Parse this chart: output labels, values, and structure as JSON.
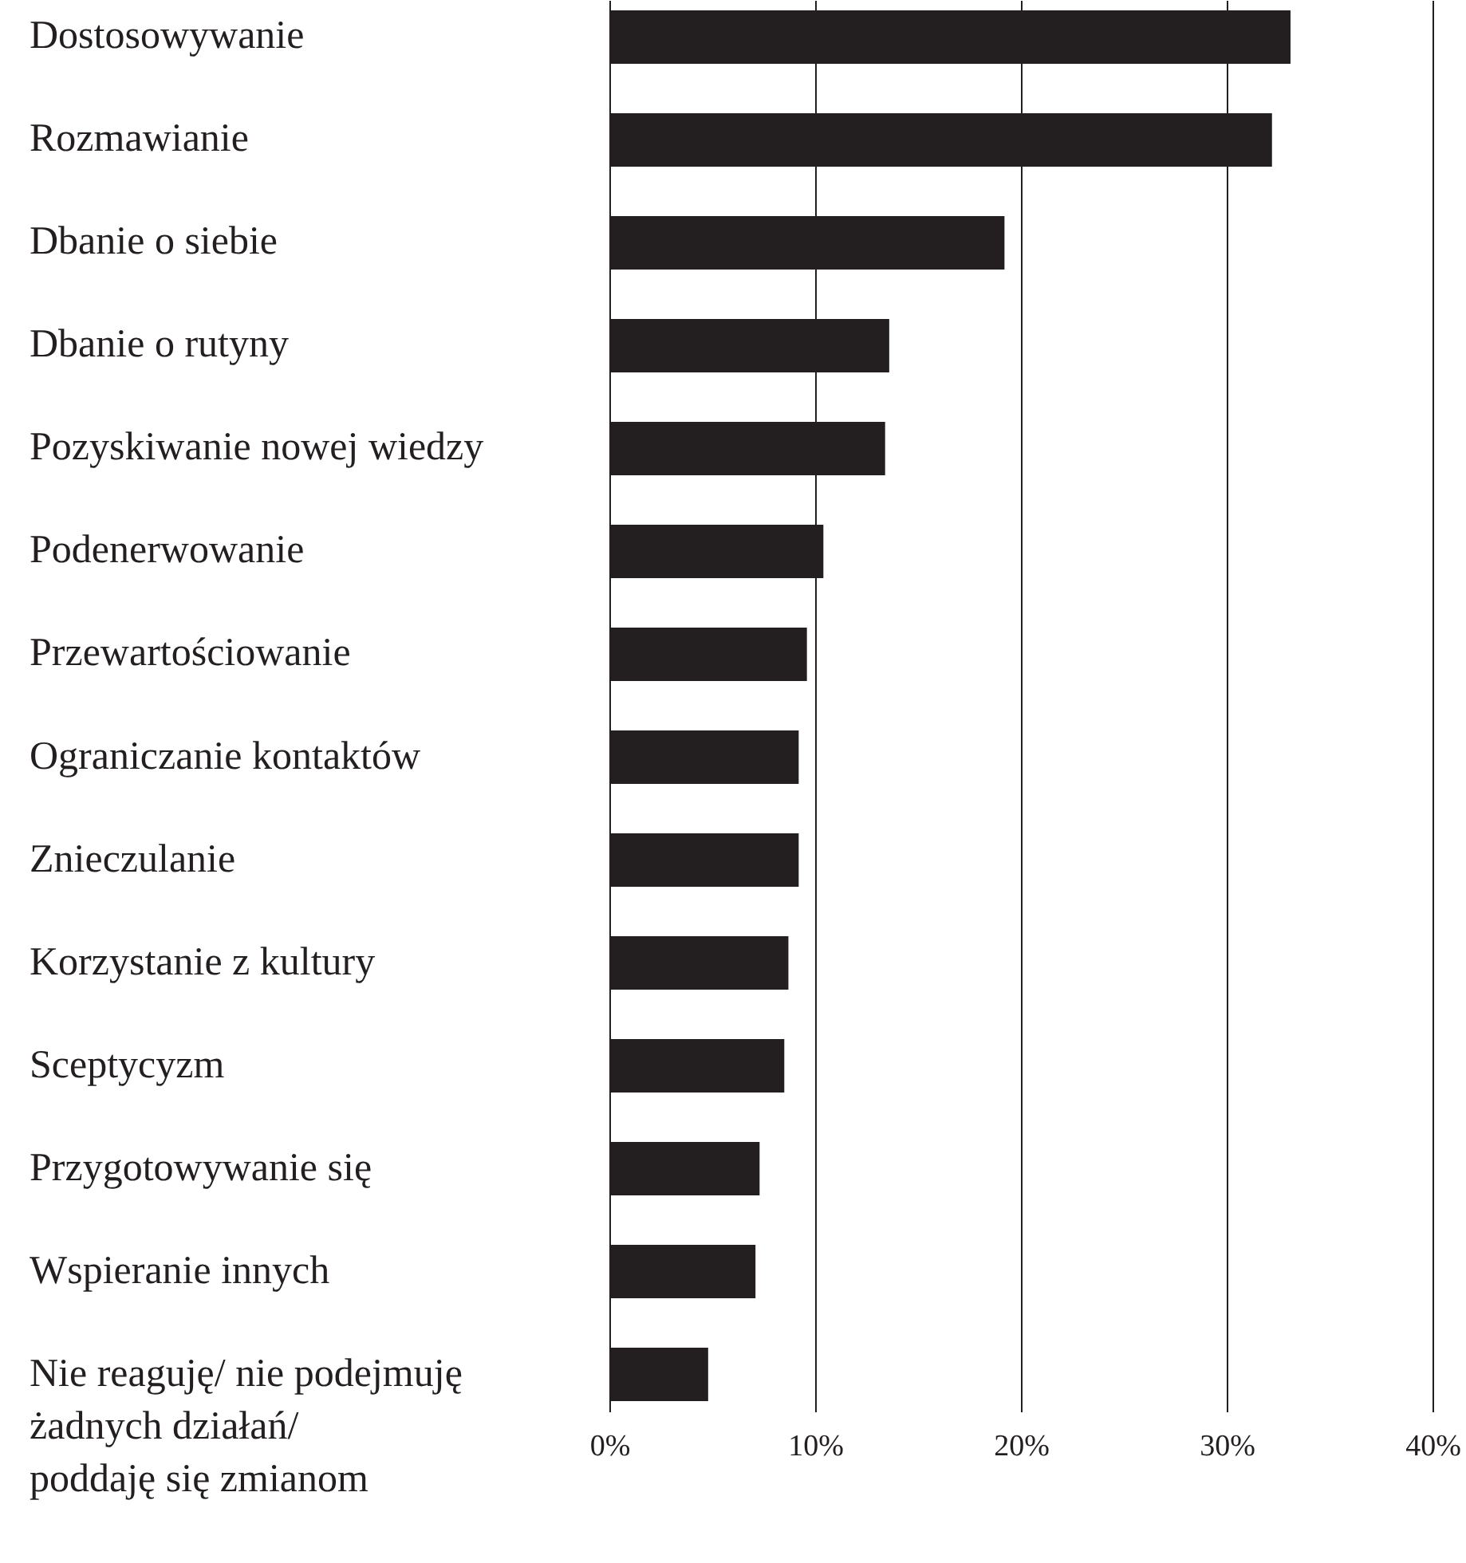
{
  "chart_data": {
    "type": "bar",
    "orientation": "horizontal",
    "categories": [
      "Dostosowywanie",
      "Rozmawianie",
      "Dbanie o siebie",
      "Dbanie o rutyny",
      "Pozyskiwanie nowej wiedzy",
      "Podenerwowanie",
      "Przewartościowanie",
      "Ograniczanie kontaktów",
      "Znieczulanie",
      "Korzystanie z kultury",
      "Sceptycyzm",
      "Przygotowywanie się",
      "Wspieranie innych",
      "Nie reaguję/ nie podejmuję żadnych działań/ poddaję się zmianom"
    ],
    "values": [
      33.1,
      32.2,
      19.2,
      13.6,
      13.4,
      10.4,
      9.6,
      9.2,
      9.2,
      8.7,
      8.5,
      7.3,
      7.1,
      4.8
    ],
    "color": "#231f20",
    "xlim": [
      0,
      40
    ],
    "xticks": [
      {
        "value": 0,
        "label": "0%"
      },
      {
        "value": 10,
        "label": "10%"
      },
      {
        "value": 20,
        "label": "20%"
      },
      {
        "value": 30,
        "label": "30%"
      },
      {
        "value": 40,
        "label": "40%"
      }
    ],
    "grid": "x"
  }
}
